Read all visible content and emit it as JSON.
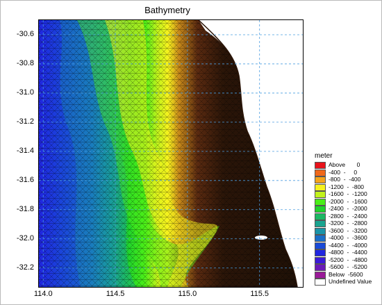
{
  "title": "Bathymetry",
  "colors": {
    "deep_blue": "#1a2fd8",
    "land": "#ffffff",
    "shallow": "#2a1508",
    "grid": "#4a9de0"
  },
  "axes": {
    "x_ticks": [
      "114.0",
      "114.5",
      "115.0",
      "115.5"
    ],
    "y_ticks": [
      "-30.6",
      "-30.8",
      "-31.0",
      "-31.2",
      "-31.4",
      "-31.6",
      "-31.8",
      "-32.0",
      "-32.2"
    ],
    "x_range": [
      113.97,
      115.8
    ],
    "y_range": [
      -32.33,
      -30.5
    ]
  },
  "legend": {
    "title": "meter",
    "items": [
      {
        "label": "Above       0",
        "color": "#e8121a"
      },
      {
        "label": "-400  -     0",
        "color": "#f0681a"
      },
      {
        "label": "-800  -  -400",
        "color": "#f4a41c"
      },
      {
        "label": "-1200  -  -800",
        "color": "#f6f21e"
      },
      {
        "label": "-1600  -  -1200",
        "color": "#c2f21c"
      },
      {
        "label": "-2000  -  -1600",
        "color": "#4aee18"
      },
      {
        "label": "-2400  -  -2000",
        "color": "#20d42c"
      },
      {
        "label": "-2800  -  -2400",
        "color": "#1cb864"
      },
      {
        "label": "-3200  -  -2800",
        "color": "#1aa490"
      },
      {
        "label": "-3600  -  -3200",
        "color": "#1a94a8"
      },
      {
        "label": "-4000  -  -3600",
        "color": "#1a6ec8"
      },
      {
        "label": "-4400  -  -4000",
        "color": "#1a4ad8"
      },
      {
        "label": "-4800  -  -4400",
        "color": "#2026e0"
      },
      {
        "label": "-5200  -  -4800",
        "color": "#3a1ad8"
      },
      {
        "label": "-5600  -  -5200",
        "color": "#6a1ab8"
      },
      {
        "label": "Below  -5600",
        "color": "#9a1a98"
      },
      {
        "label": "Undefined Value",
        "color": "#ffffff"
      }
    ]
  }
}
